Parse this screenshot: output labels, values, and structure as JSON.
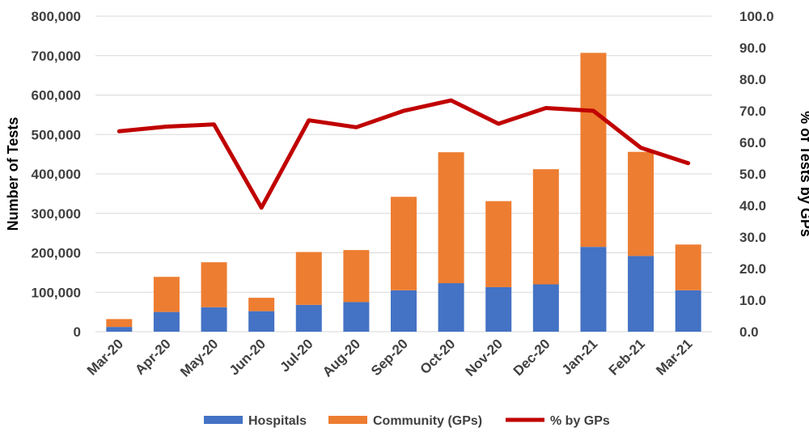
{
  "chart_data": {
    "type": "bar",
    "stacked": true,
    "categories": [
      "Mar-20",
      "Apr-20",
      "May-20",
      "Jun-20",
      "Jul-20",
      "Aug-20",
      "Sep-20",
      "Oct-20",
      "Nov-20",
      "Dec-20",
      "Jan-21",
      "Feb-21",
      "Mar-21"
    ],
    "series": [
      {
        "name": "Hospitals",
        "color": "#4472C4",
        "axis": "left",
        "values": [
          12000,
          50000,
          62000,
          52000,
          68000,
          75000,
          105000,
          123000,
          113000,
          120000,
          215000,
          192000,
          105000
        ]
      },
      {
        "name": "Community (GPs)",
        "color": "#ED7D31",
        "axis": "left",
        "values": [
          20000,
          89000,
          114000,
          34000,
          134000,
          132000,
          237000,
          332000,
          218000,
          292000,
          492000,
          264000,
          116000
        ]
      },
      {
        "name": "% by GPs",
        "color": "#C00000",
        "axis": "right",
        "type": "line",
        "values": [
          63.5,
          65.0,
          65.7,
          39.3,
          67.0,
          64.8,
          70.0,
          73.3,
          65.9,
          70.9,
          70.0,
          58.3,
          53.4
        ]
      }
    ],
    "ylabel": "Number of Tests",
    "y2label": "% of Tests by GPs",
    "ylim": [
      0,
      800000
    ],
    "y2lim": [
      0,
      100
    ],
    "yticks": [
      "0",
      "100,000",
      "200,000",
      "300,000",
      "400,000",
      "500,000",
      "600,000",
      "700,000",
      "800,000"
    ],
    "y2ticks": [
      "0.0",
      "10.0",
      "20.0",
      "30.0",
      "40.0",
      "50.0",
      "60.0",
      "70.0",
      "80.0",
      "90.0",
      "100.0"
    ],
    "legend": [
      "Hospitals",
      "Community (GPs)",
      "% by GPs"
    ],
    "legend_position": "bottom",
    "grid": true
  }
}
